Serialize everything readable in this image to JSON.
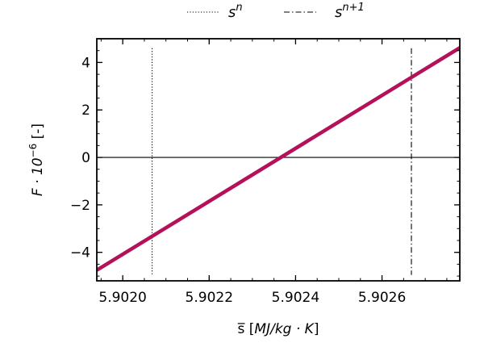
{
  "chart_data": {
    "type": "line",
    "xlabel": {
      "prefix": "s̅ [",
      "unit": "MJ/kg · K",
      "suffix": "]"
    },
    "ylabel": {
      "base": "F · 10",
      "exp": "−6",
      "suffix": " [-]"
    },
    "xlim": [
      5.90194,
      5.90278
    ],
    "ylim": [
      -5.2,
      5.0
    ],
    "x_ticks": [
      5.902,
      5.9022,
      5.9024,
      5.9026
    ],
    "x_tick_labels": [
      "5.9020",
      "5.9022",
      "5.9024",
      "5.9026"
    ],
    "y_ticks": [
      -4,
      -2,
      0,
      2,
      4
    ],
    "y_tick_labels": [
      "−4",
      "−2",
      "0",
      "2",
      "4"
    ],
    "grid": false,
    "legend_position": "top-center-outside",
    "series": [
      {
        "name": "",
        "color": "#b5105a",
        "x": [
          5.90194,
          5.90278
        ],
        "y": [
          -4.75,
          4.62
        ]
      }
    ],
    "reference_lines": [
      {
        "kind": "horizontal",
        "y": 0,
        "style": "solid",
        "color": "#000000"
      },
      {
        "kind": "vertical",
        "x": 5.902068,
        "style": "dotted",
        "color": "#000000",
        "legend": {
          "base": "s",
          "sup": "n"
        }
      },
      {
        "kind": "vertical",
        "x": 5.902668,
        "style": "dashdot",
        "color": "#000000",
        "legend": {
          "base": "s",
          "sup": "n+1"
        }
      }
    ]
  }
}
